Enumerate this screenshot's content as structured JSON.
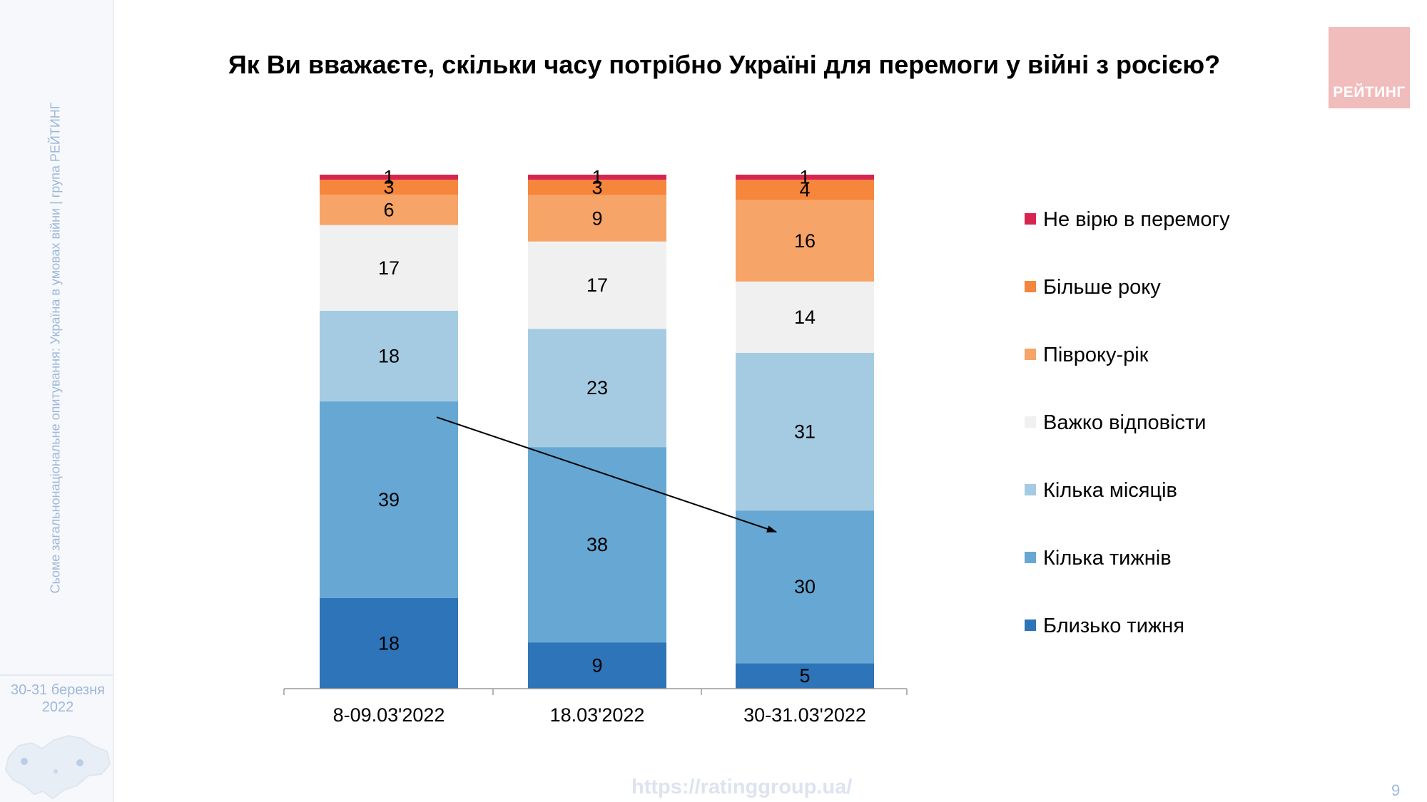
{
  "sidebar": {
    "rotated_text": "Сьоме загальнонаціональне опитування: Україна в умовах війни | група РЕЙТИНГ",
    "date_line1": "30-31 березня",
    "date_line2": "2022"
  },
  "logo": {
    "text": "РЕЙТИНГ",
    "color": "#f1bcbc"
  },
  "footer": {
    "url": "https://ratinggroup.ua/",
    "page_number": "9"
  },
  "chart_data": {
    "type": "bar",
    "stacked": true,
    "title": "Як Ви вважаєте, скільки часу потрібно Україні для перемоги у війні з росією?",
    "categories": [
      "8-09.03'2022",
      "18.03'2022",
      "30-31.03'2022"
    ],
    "series": [
      {
        "name": "Близько тижня",
        "color": "#2e74b8",
        "values": [
          18,
          9,
          5
        ]
      },
      {
        "name": "Кілька тижнів",
        "color": "#66a7d3",
        "values": [
          39,
          38,
          30
        ]
      },
      {
        "name": "Кілька місяців",
        "color": "#a5cbe3",
        "values": [
          18,
          23,
          31
        ]
      },
      {
        "name": "Важко відповісти",
        "color": "#f0f0f0",
        "values": [
          17,
          17,
          14
        ]
      },
      {
        "name": "Півроку-рік",
        "color": "#f7a468",
        "values": [
          6,
          9,
          16
        ]
      },
      {
        "name": "Більше року",
        "color": "#f5863b",
        "values": [
          3,
          3,
          4
        ]
      },
      {
        "name": "Не вірю в перемогу",
        "color": "#d6264f",
        "values": [
          1,
          1,
          1
        ]
      }
    ],
    "legend_position": "right",
    "data_labels": true,
    "grid": false,
    "annotation": "arrow from 8-09.03'2022 Кілька тижнів to 30-31.03'2022 Кілька тижнів"
  }
}
